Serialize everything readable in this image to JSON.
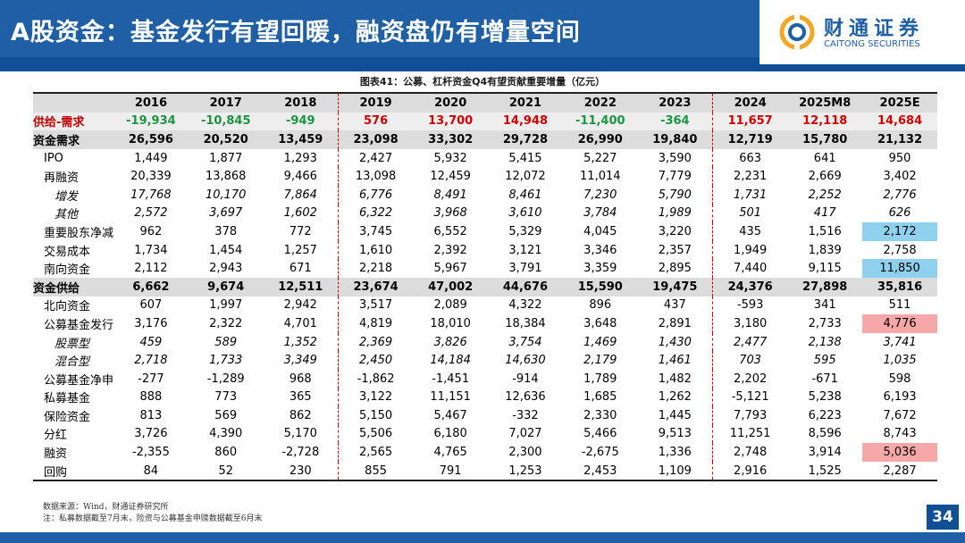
{
  "header": {
    "title": "A股资金：基金发行有望回暖，融资盘仍有增量空间",
    "logo_cn": "财通证券",
    "logo_en": "CAITONG SECURITIES"
  },
  "caption": "图表41：公募、杠杆资金Q4有望贡献重要增量（亿元）",
  "table": {
    "years": [
      "2016",
      "2017",
      "2018",
      "2019",
      "2020",
      "2021",
      "2022",
      "2023",
      "2024",
      "2025M8",
      "2025E"
    ],
    "rows": [
      {
        "label": "供给-需求",
        "style": "sd",
        "values": [
          "-19,934",
          "-10,845",
          "-949",
          "576",
          "13,700",
          "14,948",
          "-11,400",
          "-364",
          "11,657",
          "12,118",
          "14,684"
        ]
      },
      {
        "label": "资金需求",
        "style": "tot",
        "values": [
          "26,596",
          "20,520",
          "13,459",
          "23,098",
          "33,302",
          "29,728",
          "26,990",
          "19,840",
          "12,719",
          "15,780",
          "21,132"
        ]
      },
      {
        "label": "IPO",
        "style": "r1",
        "values": [
          "1,449",
          "1,877",
          "1,293",
          "2,427",
          "5,932",
          "5,415",
          "5,227",
          "3,590",
          "663",
          "641",
          "950"
        ]
      },
      {
        "label": "再融资",
        "style": "r1",
        "values": [
          "20,339",
          "13,868",
          "9,466",
          "13,098",
          "12,459",
          "12,072",
          "11,014",
          "7,779",
          "2,231",
          "2,669",
          "3,402"
        ]
      },
      {
        "label": "增发",
        "style": "r2",
        "values": [
          "17,768",
          "10,170",
          "7,864",
          "6,776",
          "8,491",
          "8,461",
          "7,230",
          "5,790",
          "1,731",
          "2,252",
          "2,776"
        ]
      },
      {
        "label": "其他",
        "style": "r2",
        "values": [
          "2,572",
          "3,697",
          "1,602",
          "6,322",
          "3,968",
          "3,610",
          "3,784",
          "1,989",
          "501",
          "417",
          "626"
        ]
      },
      {
        "label": "重要股东净减持",
        "style": "r1",
        "values": [
          "962",
          "378",
          "772",
          "3,745",
          "6,552",
          "5,329",
          "4,045",
          "3,220",
          "435",
          "1,516",
          "2,172"
        ]
      },
      {
        "label": "交易成本",
        "style": "r1",
        "values": [
          "1,734",
          "1,454",
          "1,257",
          "1,610",
          "2,392",
          "3,121",
          "3,346",
          "2,357",
          "1,949",
          "1,839",
          "2,758"
        ]
      },
      {
        "label": "南向资金",
        "style": "r1",
        "values": [
          "2,112",
          "2,943",
          "671",
          "2,218",
          "5,967",
          "3,791",
          "3,359",
          "2,895",
          "7,440",
          "9,115",
          "11,850"
        ]
      },
      {
        "label": "资金供给",
        "style": "tot",
        "values": [
          "6,662",
          "9,674",
          "12,511",
          "23,674",
          "47,002",
          "44,676",
          "15,590",
          "19,475",
          "24,376",
          "27,898",
          "35,816"
        ]
      },
      {
        "label": "北向资金",
        "style": "r1",
        "values": [
          "607",
          "1,997",
          "2,942",
          "3,517",
          "2,089",
          "4,322",
          "896",
          "437",
          "-593",
          "341",
          "511"
        ]
      },
      {
        "label": "公募基金发行",
        "style": "r1",
        "values": [
          "3,176",
          "2,322",
          "4,701",
          "4,819",
          "18,010",
          "18,384",
          "3,648",
          "2,891",
          "3,180",
          "2,733",
          "4,776"
        ]
      },
      {
        "label": "股票型",
        "style": "r2",
        "values": [
          "459",
          "589",
          "1,352",
          "2,369",
          "3,826",
          "3,754",
          "1,469",
          "1,430",
          "2,477",
          "2,138",
          "3,741"
        ]
      },
      {
        "label": "混合型",
        "style": "r2",
        "values": [
          "2,718",
          "1,733",
          "3,349",
          "2,450",
          "14,184",
          "14,630",
          "2,179",
          "1,461",
          "703",
          "595",
          "1,035"
        ]
      },
      {
        "label": "公募基金净申购",
        "style": "r1",
        "values": [
          "-277",
          "-1,289",
          "968",
          "-1,862",
          "-1,451",
          "-914",
          "1,789",
          "1,482",
          "2,202",
          "-671",
          "598"
        ]
      },
      {
        "label": "私募基金",
        "style": "r1",
        "values": [
          "888",
          "773",
          "365",
          "3,122",
          "11,151",
          "12,636",
          "1,685",
          "1,262",
          "-5,121",
          "5,238",
          "6,193"
        ]
      },
      {
        "label": "保险资金",
        "style": "r1",
        "values": [
          "813",
          "569",
          "862",
          "5,150",
          "5,467",
          "-332",
          "2,330",
          "1,445",
          "7,793",
          "6,223",
          "7,672"
        ]
      },
      {
        "label": "分红",
        "style": "r1",
        "values": [
          "3,726",
          "4,390",
          "5,170",
          "5,506",
          "6,180",
          "7,027",
          "5,466",
          "9,513",
          "11,251",
          "8,596",
          "8,743"
        ]
      },
      {
        "label": "融资",
        "style": "r1",
        "values": [
          "-2,355",
          "860",
          "-2,728",
          "2,565",
          "4,765",
          "2,300",
          "-2,675",
          "1,336",
          "2,748",
          "3,914",
          "5,036"
        ]
      },
      {
        "label": "回购",
        "style": "r1 last",
        "values": [
          "84",
          "52",
          "230",
          "855",
          "791",
          "1,253",
          "2,453",
          "1,109",
          "2,916",
          "1,525",
          "2,287"
        ]
      }
    ],
    "colors": {
      "negative_green": "#1a9641",
      "positive_red": "#d40000",
      "highlight_blue": "#8fd0ee",
      "highlight_pink": "#f6a8a8",
      "brand_blue": "#1f5fa6"
    }
  },
  "footer": {
    "source": "数据来源：Wind，财通证券研究所",
    "note": "注：私募数据截至7月末，险资与公募基金申赎数据截至6月末",
    "page_number": "34"
  }
}
